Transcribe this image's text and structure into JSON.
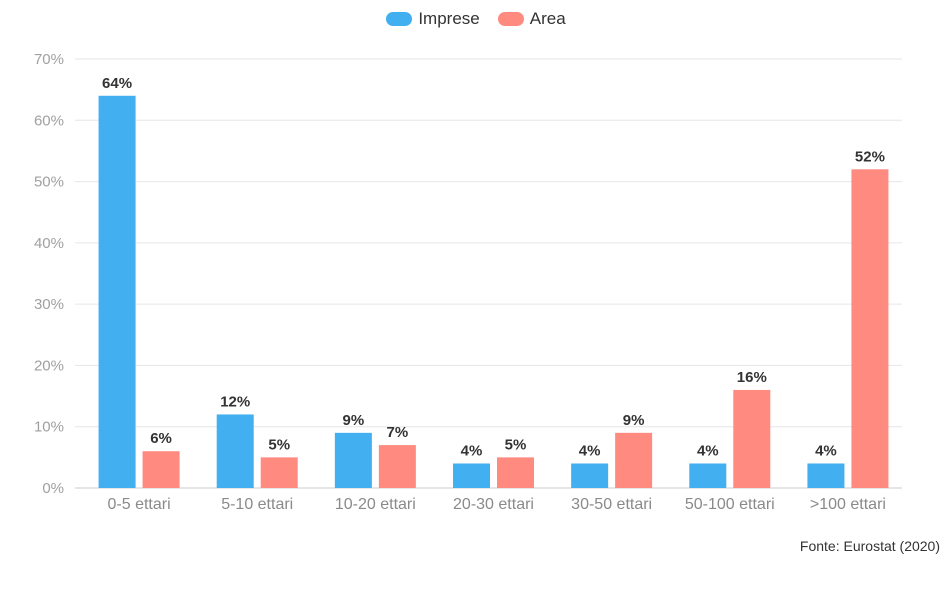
{
  "legend": {
    "items": [
      {
        "label": "Imprese",
        "color": "#42AFF0"
      },
      {
        "label": "Area",
        "color": "#FF8A80"
      }
    ]
  },
  "source": "Fonte: Eurostat (2020)",
  "chart_data": {
    "type": "bar",
    "categories": [
      "0-5 ettari",
      "5-10 ettari",
      "10-20 ettari",
      "20-30 ettari",
      "30-50 ettari",
      "50-100 ettari",
      ">100 ettari"
    ],
    "series": [
      {
        "name": "Imprese",
        "values": [
          64,
          12,
          9,
          4,
          4,
          4,
          4
        ],
        "color": "#42AFF0"
      },
      {
        "name": "Area",
        "values": [
          6,
          5,
          7,
          5,
          9,
          16,
          52
        ],
        "color": "#FF8A80"
      }
    ],
    "value_suffix": "%",
    "ylim": [
      0,
      70
    ],
    "yticks": [
      "0%",
      "10%",
      "20%",
      "30%",
      "40%",
      "50%",
      "60%",
      "70%"
    ],
    "grid": true,
    "legend_position": "top"
  }
}
